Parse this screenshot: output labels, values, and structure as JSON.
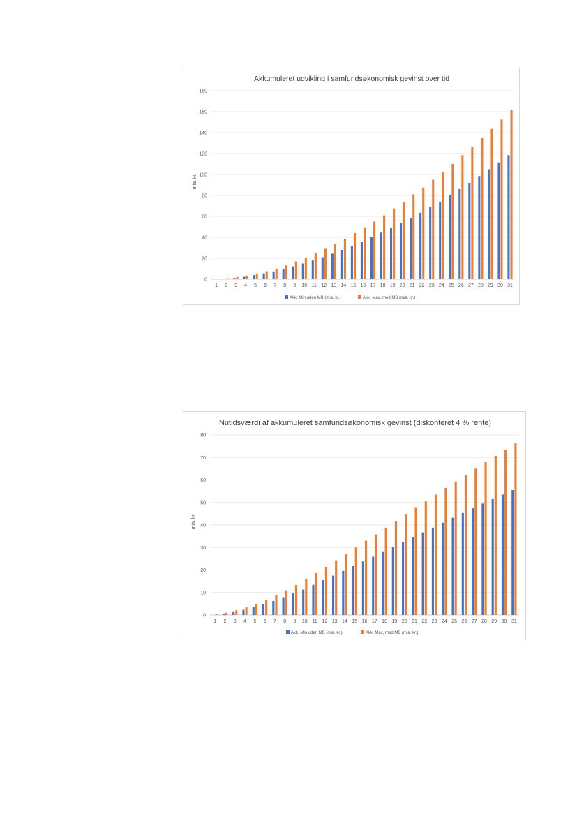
{
  "chart_data": [
    {
      "type": "bar",
      "title": "Akkumuleret udvikling i samfundsøkonomisk gevinst over tid",
      "xlabel": "",
      "ylabel": "mia. kr.",
      "ylim": [
        0,
        180
      ],
      "yticks": [
        0,
        20,
        40,
        60,
        80,
        100,
        120,
        140,
        160,
        180
      ],
      "categories": [
        "1",
        "2",
        "3",
        "4",
        "5",
        "6",
        "7",
        "8",
        "9",
        "10",
        "11",
        "12",
        "13",
        "14",
        "15",
        "16",
        "17",
        "18",
        "19",
        "20",
        "21",
        "22",
        "23",
        "24",
        "25",
        "26",
        "27",
        "28",
        "29",
        "30",
        "31"
      ],
      "series": [
        {
          "name": "Akk. Min uden MB (mia. kr.)",
          "color": "#4472c4",
          "values": [
            0,
            0.5,
            1.3,
            2.3,
            3.9,
            5.6,
            7.5,
            9.8,
            12.3,
            15,
            17.9,
            21,
            24.4,
            28,
            32,
            36,
            40,
            44.5,
            49,
            54,
            58.5,
            63.5,
            69,
            74,
            80,
            86,
            92,
            98.5,
            105,
            111.5,
            118.5
          ]
        },
        {
          "name": "Akk. Max, med MB (mia. kr.)",
          "color": "#ed7d31",
          "values": [
            0,
            1,
            2.2,
            3.5,
            5.5,
            7.6,
            10.2,
            13.2,
            17,
            20.5,
            24.7,
            29,
            33.5,
            38.7,
            44,
            49.5,
            55,
            61,
            67.5,
            74,
            81,
            87.5,
            95,
            102.5,
            110,
            118.5,
            126.5,
            135,
            143.5,
            152.5,
            161.5
          ]
        }
      ],
      "grid": true,
      "legend": "bottom"
    },
    {
      "type": "bar",
      "title": "Nutidsværdi af akkumuleret samfundsøkonomisk gevinst (diskonteret 4 % rente)",
      "xlabel": "",
      "ylabel": "mia. kr.",
      "ylim": [
        0,
        80
      ],
      "yticks": [
        0,
        10,
        20,
        30,
        40,
        50,
        60,
        70,
        80
      ],
      "categories": [
        "1",
        "2",
        "3",
        "4",
        "5",
        "6",
        "7",
        "8",
        "9",
        "10",
        "11",
        "12",
        "13",
        "14",
        "15",
        "16",
        "17",
        "18",
        "19",
        "20",
        "21",
        "22",
        "23",
        "24",
        "25",
        "26",
        "27",
        "28",
        "29",
        "30",
        "31"
      ],
      "series": [
        {
          "name": "Akk. Min uden MB (mia. kr.)",
          "color": "#4472c4",
          "values": [
            0,
            0.5,
            1.3,
            2.3,
            3.5,
            4.7,
            6.2,
            7.9,
            9.6,
            11.3,
            13.4,
            15.5,
            17.5,
            19.6,
            21.7,
            23.8,
            25.9,
            28,
            30.1,
            32.3,
            34.4,
            36.7,
            38.8,
            41,
            43.2,
            45.3,
            47.4,
            49.5,
            51.5,
            53.5,
            55.5
          ]
        },
        {
          "name": "Akk. Max, med MB (mia. kr.)",
          "color": "#ed7d31",
          "values": [
            0.3,
            1,
            2.1,
            3.4,
            4.9,
            6.7,
            8.8,
            11,
            13.3,
            16,
            18.6,
            21.4,
            24.3,
            27.1,
            30,
            33,
            35.8,
            38.8,
            41.7,
            44.6,
            47.6,
            50.5,
            53.5,
            56.4,
            59.3,
            62.1,
            65,
            67.9,
            70.7,
            73.5,
            76.3
          ]
        }
      ],
      "grid": true,
      "legend": "bottom"
    }
  ]
}
